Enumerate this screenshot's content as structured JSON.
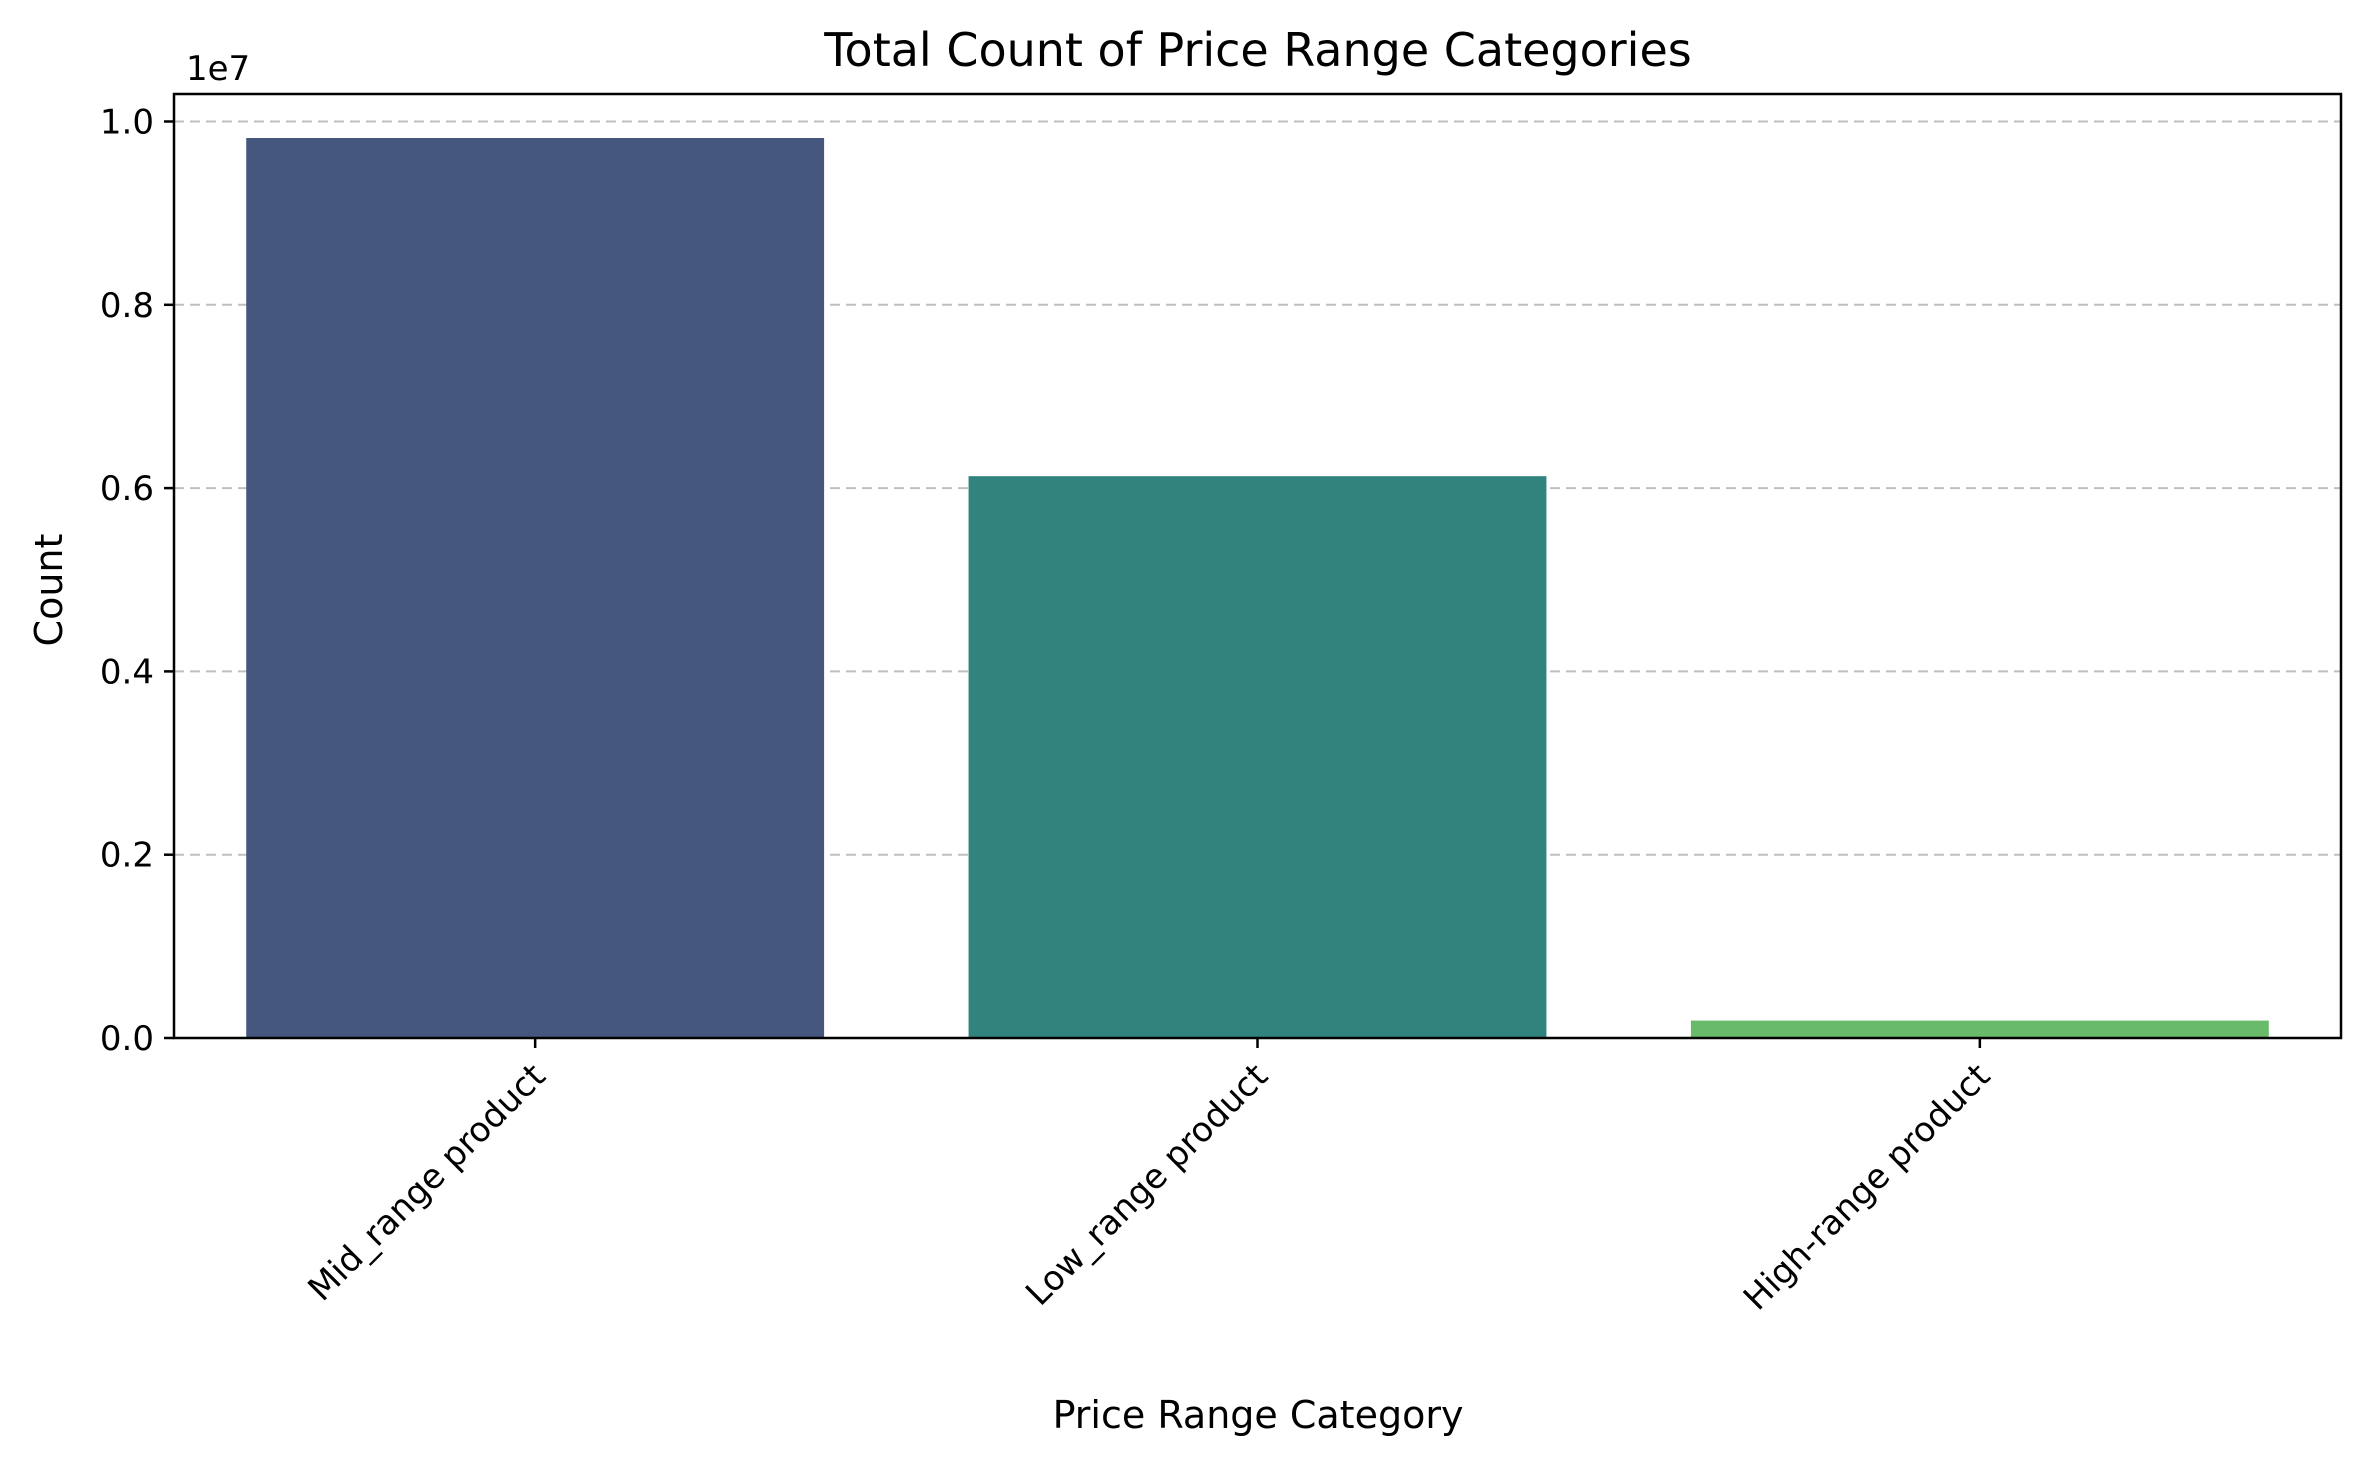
{
  "chart_data": {
    "type": "bar",
    "title": "Total Count of Price Range Categories",
    "xlabel": "Price Range Category",
    "ylabel": "Count",
    "y_offset_label": "1e7",
    "categories": [
      "Mid_range product",
      "Low_range product",
      "High-range product"
    ],
    "values": [
      9820000,
      6130000,
      190000
    ],
    "colors": [
      "#46577f",
      "#31847e",
      "#69ba6a"
    ],
    "ylim": [
      0,
      10300000
    ],
    "y_scale": 10000000,
    "y_ticks": [
      0,
      2000000,
      4000000,
      6000000,
      8000000,
      10000000
    ],
    "y_tick_labels": [
      "0.0",
      "0.2",
      "0.4",
      "0.6",
      "0.8",
      "1.0"
    ],
    "grid": "y-dashed",
    "legend": "none",
    "xtick_rotation": 45
  }
}
